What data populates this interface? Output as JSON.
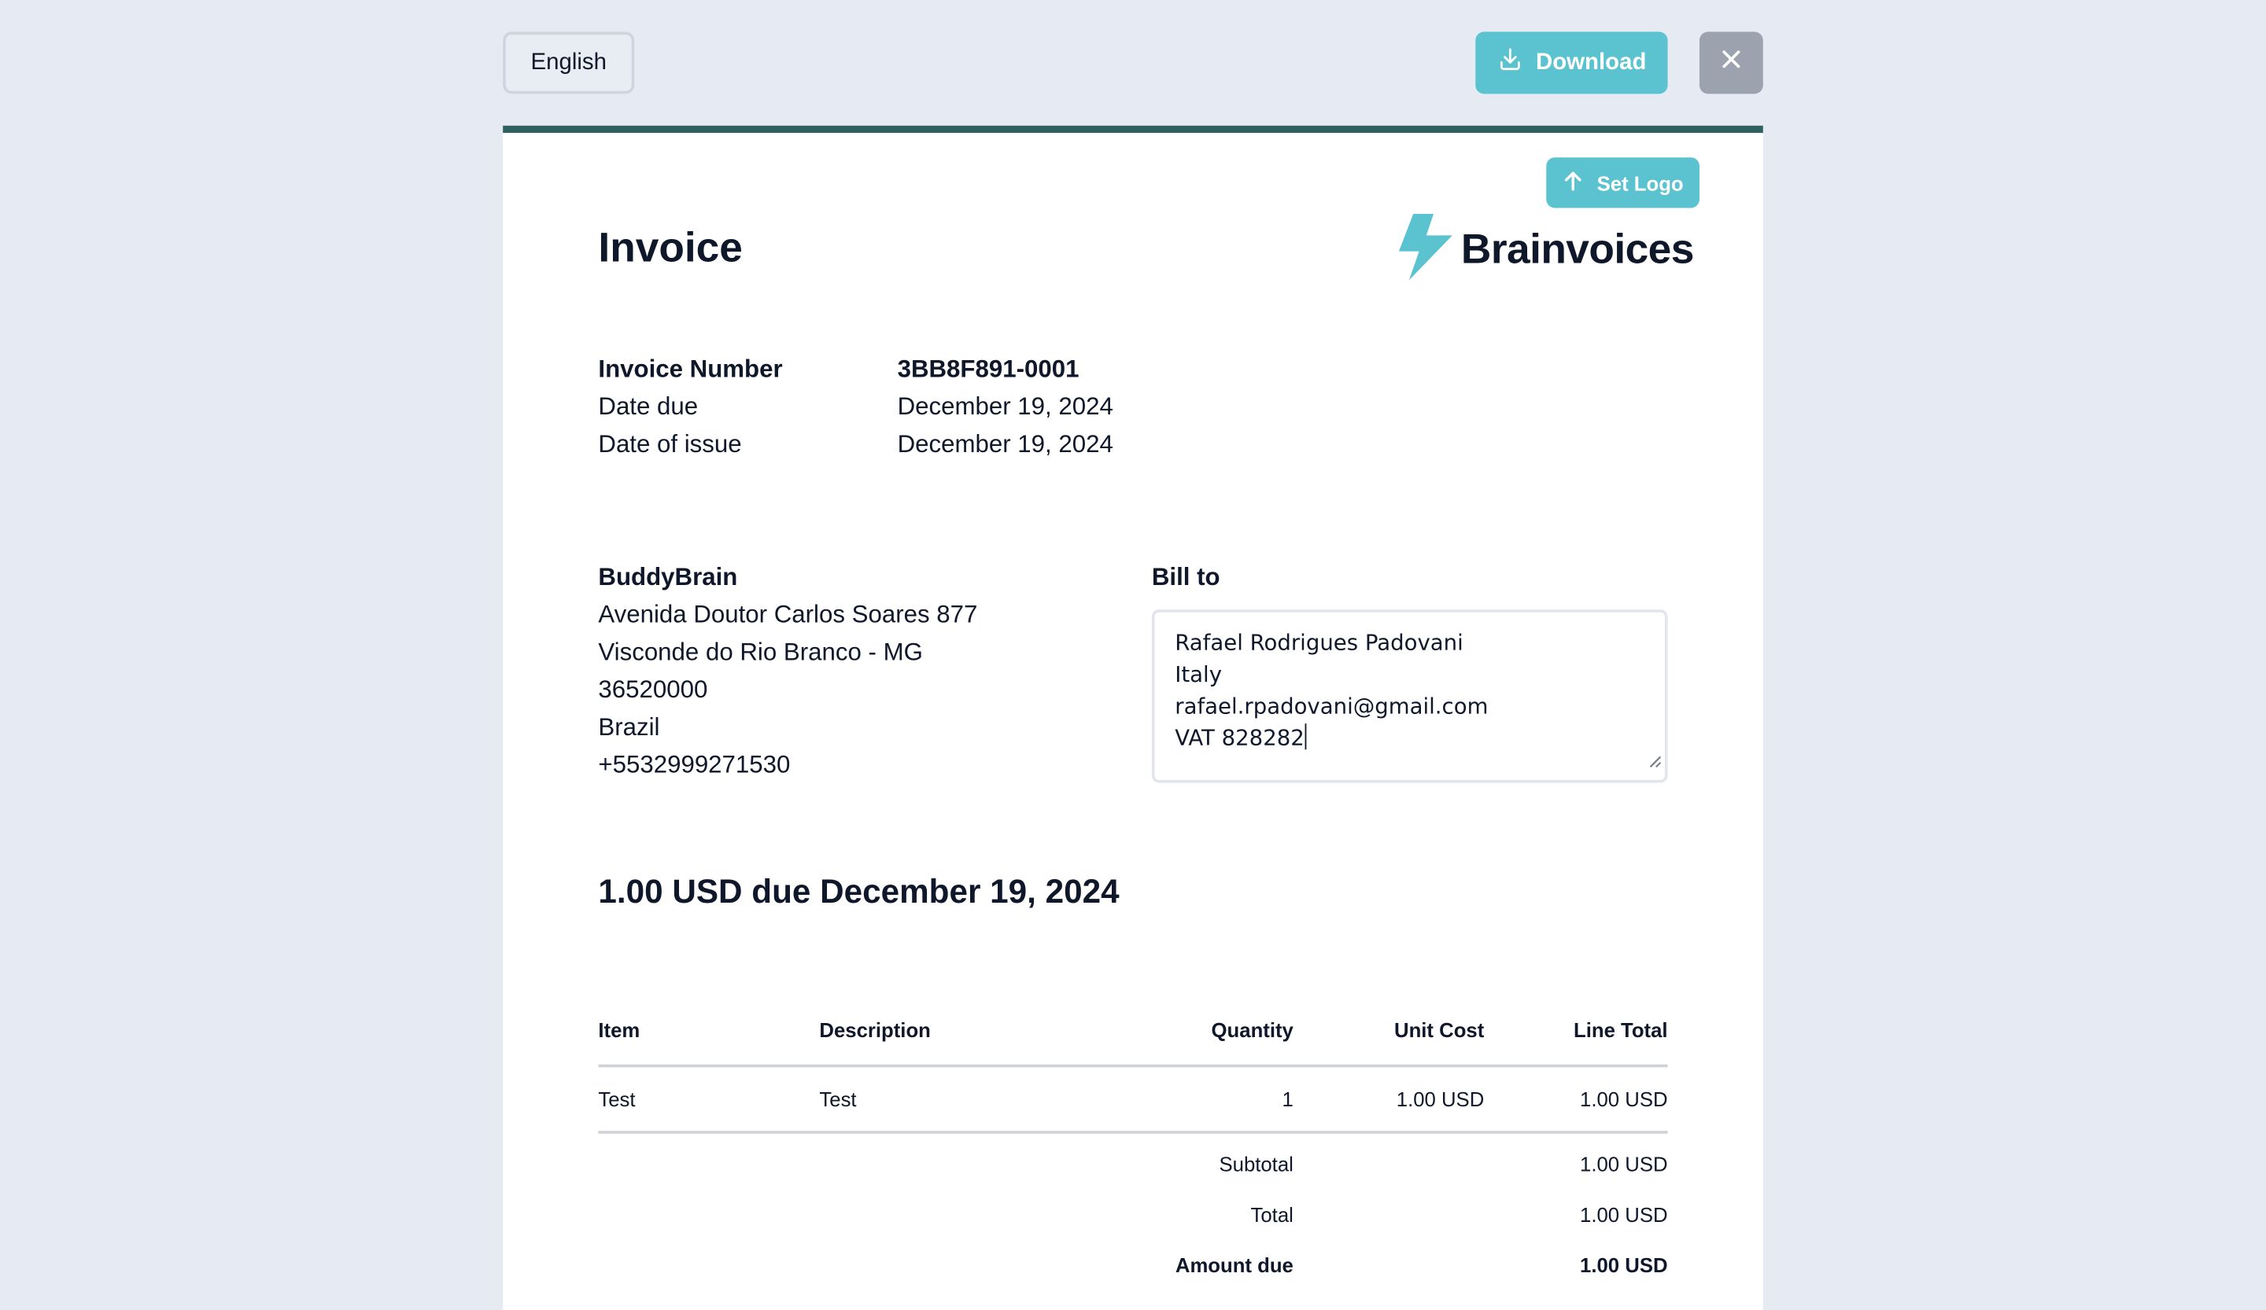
{
  "toolbar": {
    "language": "English",
    "download_label": "Download"
  },
  "colors": {
    "accent": "#5bc3cf",
    "sheet_border": "#2f6060",
    "close_bg": "#9ca3af",
    "page_bg": "#e6eaf2"
  },
  "invoice": {
    "set_logo_label": "Set Logo",
    "title": "Invoice",
    "brand": "Brainvoices",
    "meta": {
      "number_label": "Invoice Number",
      "number_value": "3BB8F891-0001",
      "due_label": "Date due",
      "due_value": "December 19, 2024",
      "issue_label": "Date of issue",
      "issue_value": "December 19, 2024"
    },
    "sender": {
      "name": "BuddyBrain",
      "lines": [
        "Avenida Doutor Carlos Soares 877",
        "Visconde do Rio Branco - MG",
        "36520000",
        "Brazil",
        "+5532999271530"
      ]
    },
    "bill_to": {
      "label": "Bill to",
      "lines": [
        "Rafael Rodrigues Padovani",
        "Italy",
        "rafael.rpadovani@gmail.com",
        "VAT 828282"
      ]
    },
    "amount_due_heading": "1.00 USD due December 19, 2024",
    "table": {
      "headers": {
        "item": "Item",
        "description": "Description",
        "quantity": "Quantity",
        "unit_cost": "Unit Cost",
        "line_total": "Line Total"
      },
      "rows": [
        {
          "item": "Test",
          "description": "Test",
          "quantity": "1",
          "unit_cost": "1.00 USD",
          "line_total": "1.00 USD"
        }
      ],
      "subtotal_label": "Subtotal",
      "subtotal_value": "1.00 USD",
      "total_label": "Total",
      "total_value": "1.00 USD",
      "amount_due_label": "Amount due",
      "amount_due_value": "1.00 USD"
    }
  },
  "icons": {
    "download": "download-icon",
    "close": "close-icon",
    "upload": "arrow-up-icon",
    "logo": "lightning-bolt-icon"
  }
}
